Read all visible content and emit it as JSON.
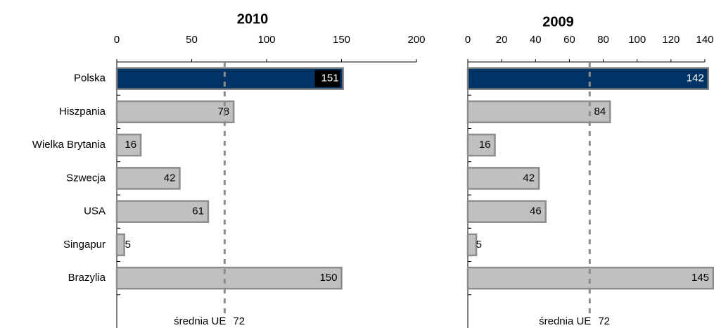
{
  "chart_data": [
    {
      "type": "bar",
      "orientation": "horizontal",
      "title": "2010",
      "categories": [
        "Polska",
        "Hiszpania",
        "Wielka Brytania",
        "Szwecja",
        "USA",
        "Singapur",
        "Brazylia"
      ],
      "values": [
        151,
        78,
        16,
        42,
        61,
        5,
        150
      ],
      "colors": [
        "#003366",
        "#c0c0c0",
        "#c0c0c0",
        "#c0c0c0",
        "#c0c0c0",
        "#c0c0c0",
        "#c0c0c0"
      ],
      "xlim": [
        0,
        200
      ],
      "xticks": [
        0,
        50,
        100,
        150,
        200
      ],
      "annotation": {
        "label": "średnia UE",
        "value": 72
      }
    },
    {
      "type": "bar",
      "orientation": "horizontal",
      "title": "2009",
      "values": [
        142,
        84,
        16,
        42,
        46,
        5,
        145
      ],
      "colors": [
        "#003366",
        "#c0c0c0",
        "#c0c0c0",
        "#c0c0c0",
        "#c0c0c0",
        "#c0c0c0",
        "#c0c0c0"
      ],
      "xlim": [
        0,
        140
      ],
      "xticks": [
        0,
        20,
        40,
        60,
        80,
        100,
        120,
        140
      ],
      "annotation": {
        "label": "średnia UE",
        "value": 72
      }
    }
  ]
}
